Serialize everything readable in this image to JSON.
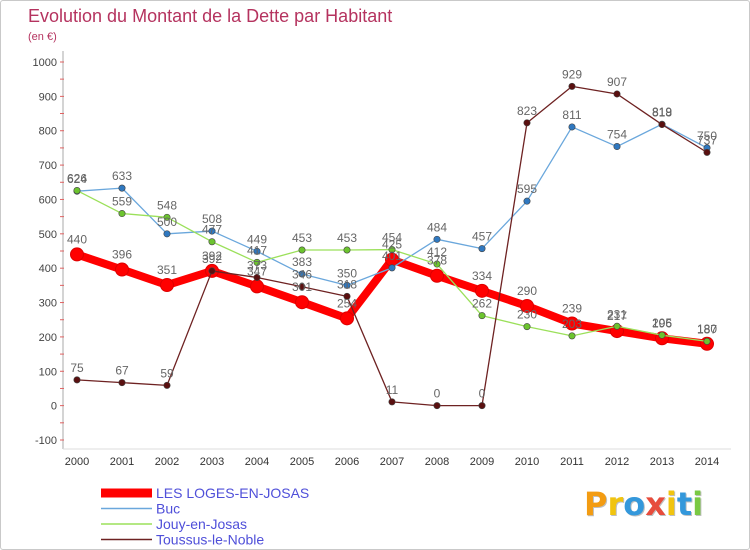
{
  "chart_data": {
    "type": "line",
    "title": "Evolution du Montant de la Dette par Habitant",
    "subtitle": "(en €)",
    "x": [
      2000,
      2001,
      2002,
      2003,
      2004,
      2005,
      2006,
      2007,
      2008,
      2009,
      2010,
      2011,
      2012,
      2013,
      2014
    ],
    "ylim": [
      -100,
      1000
    ],
    "yticks": [
      1000,
      900,
      800,
      700,
      600,
      500,
      400,
      300,
      200,
      100,
      0,
      -100
    ],
    "grid": false,
    "data_labels": true,
    "legend_position": "bottom-left",
    "series": [
      {
        "name": "LES LOGES-EN-JOSAS",
        "color": "#ff0000",
        "marker_color": "#ff0000",
        "values": [
          440,
          396,
          351,
          392,
          347,
          301,
          254,
          425,
          378,
          334,
          290,
          239,
          217,
          196,
          180
        ]
      },
      {
        "name": "Buc",
        "color": "#6aa7dc",
        "marker_color": "#2f78c0",
        "values": [
          624,
          633,
          500,
          508,
          449,
          383,
          350,
          401,
          484,
          457,
          595,
          811,
          754,
          819,
          750
        ]
      },
      {
        "name": "Jouy-en-Josas",
        "color": "#9be05a",
        "marker_color": "#6cc42e",
        "values": [
          626,
          559,
          548,
          477,
          417,
          453,
          453,
          454,
          412,
          262,
          230,
          203,
          231,
          205,
          187
        ]
      },
      {
        "name": "Toussus-le-Noble",
        "color": "#6e2222",
        "marker_color": "#5a1010",
        "values": [
          75,
          67,
          59,
          392,
          373,
          346,
          318,
          11,
          0,
          0,
          823,
          929,
          907,
          818,
          737
        ]
      }
    ]
  },
  "logo": {
    "text": "Proxiti",
    "letter_colors": [
      "#f39c12",
      "#f1c40f",
      "#3498db",
      "#e74c3c",
      "#f1c40f",
      "#3498db",
      "#7ac943"
    ]
  }
}
